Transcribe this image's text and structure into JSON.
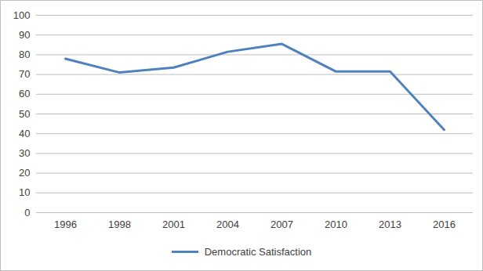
{
  "chart_data": {
    "type": "line",
    "categories": [
      "1996",
      "1998",
      "2001",
      "2004",
      "2007",
      "2010",
      "2013",
      "2016"
    ],
    "series": [
      {
        "name": "Democratic Satisfaction",
        "color": "#4f81bd",
        "values": [
          78,
          71,
          73.5,
          81.5,
          85.5,
          71.5,
          71.5,
          42
        ]
      }
    ],
    "ylim": [
      0,
      100
    ],
    "yticks": [
      0,
      10,
      20,
      30,
      40,
      50,
      60,
      70,
      80,
      90,
      100
    ],
    "grid": true,
    "legend": "bottom"
  }
}
